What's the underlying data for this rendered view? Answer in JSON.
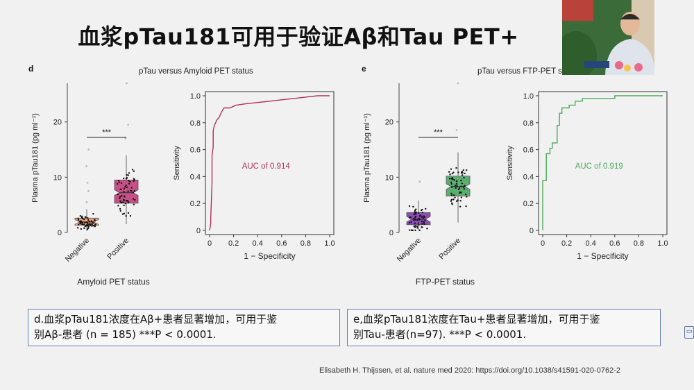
{
  "slide": {
    "title": "血浆pTau181可用于验证Aβ和Tau PET+",
    "citation": "Elisabeth H. Thijssen, et al. nature med 2020: https://doi.org/10.1038/s41591-020-0762-2"
  },
  "panels": {
    "d": {
      "letter": "d",
      "title": "pTau versus Amyloid PET status",
      "box_ylabel": "Plasma pTau181 (pg ml⁻¹)",
      "box_xlabel": "Amyloid PET status",
      "roc_xlabel": "1 − Specificity",
      "roc_ylabel": "Sensitivity",
      "significance": "***",
      "auc_label": "AUC of 0.914",
      "caption_line1": "d.血浆pTau181浓度在Aβ+患者显著增加，可用于鉴",
      "caption_line2": "别Aβ-患者 (n = 185)   ***P < 0.0001."
    },
    "e": {
      "letter": "e",
      "title": "pTau versus FTP-PET status",
      "box_ylabel": "Plasma pTau181 (pg ml⁻¹)",
      "box_xlabel": "FTP-PET status",
      "roc_xlabel": "1 − Specificity",
      "roc_ylabel": "Sensitivity",
      "significance": "***",
      "auc_label": "AUC of 0.919",
      "caption_line1": "e,血浆pTau181浓度在Tau+患者显著增加，可用于鉴",
      "caption_line2": "别Tau-患者(n=97). ***P < 0.0001."
    }
  },
  "colors": {
    "d_negative": "#f0a27a",
    "d_positive": "#c64f86",
    "d_roc": "#b0305f",
    "e_negative": "#8c4bb6",
    "e_positive": "#5cad72",
    "e_roc": "#4caa5b"
  },
  "chart_data": [
    {
      "type": "box",
      "panel": "d",
      "categories": [
        "Negative",
        "Positive"
      ],
      "ylim": [
        0,
        27
      ],
      "yticks": [
        0,
        10,
        20
      ],
      "series": [
        {
          "name": "Negative",
          "q1": 1.3,
          "median": 1.9,
          "q3": 2.6,
          "whisker_low": 0.3,
          "whisker_high": 4.2
        },
        {
          "name": "Positive",
          "q1": 5.3,
          "median": 7.2,
          "q3": 9.5,
          "whisker_low": 1.5,
          "whisker_high": 14.0
        }
      ],
      "outliers": {
        "Negative": [
          5.5,
          7.5,
          9.0,
          12.0,
          15.0
        ],
        "Positive": [
          17.0,
          19.5,
          27.0
        ]
      }
    },
    {
      "type": "line",
      "panel": "d",
      "xlabel": "1 − Specificity",
      "ylabel": "Sensitivity",
      "xlim": [
        0,
        1
      ],
      "ylim": [
        0,
        1
      ],
      "ticks": [
        0,
        0.2,
        0.4,
        0.6,
        0.8,
        1.0
      ],
      "annotation": "AUC of 0.914",
      "x": [
        0,
        0.01,
        0.01,
        0.02,
        0.02,
        0.03,
        0.03,
        0.04,
        0.05,
        0.06,
        0.08,
        0.1,
        0.12,
        0.17,
        0.22,
        0.3,
        0.4,
        0.5,
        0.6,
        0.7,
        0.8,
        0.9,
        1.0
      ],
      "y": [
        0,
        0.05,
        0.1,
        0.35,
        0.55,
        0.62,
        0.74,
        0.78,
        0.8,
        0.82,
        0.84,
        0.88,
        0.91,
        0.91,
        0.93,
        0.94,
        0.95,
        0.96,
        0.97,
        0.98,
        0.99,
        1.0,
        1.0
      ]
    },
    {
      "type": "box",
      "panel": "e",
      "categories": [
        "Negative",
        "Positive"
      ],
      "ylim": [
        0,
        27
      ],
      "yticks": [
        0,
        10,
        20
      ],
      "series": [
        {
          "name": "Negative",
          "q1": 1.4,
          "median": 2.4,
          "q3": 3.6,
          "whisker_low": 0.4,
          "whisker_high": 5.8
        },
        {
          "name": "Positive",
          "q1": 6.6,
          "median": 8.3,
          "q3": 10.2,
          "whisker_low": 1.8,
          "whisker_high": 14.5
        }
      ],
      "outliers": {
        "Negative": [
          9.2
        ],
        "Positive": [
          18.5,
          27.0
        ]
      }
    },
    {
      "type": "line",
      "panel": "e",
      "xlabel": "1 − Specificity",
      "ylabel": "Sensitivity",
      "xlim": [
        0,
        1
      ],
      "ylim": [
        0,
        1
      ],
      "ticks": [
        0,
        0.2,
        0.4,
        0.6,
        0.8,
        1.0
      ],
      "annotation": "AUC of 0.919",
      "x": [
        0,
        0,
        0.03,
        0.03,
        0.06,
        0.06,
        0.08,
        0.08,
        0.12,
        0.12,
        0.14,
        0.14,
        0.16,
        0.16,
        0.22,
        0.22,
        0.27,
        0.27,
        0.33,
        0.33,
        0.6,
        0.6,
        1.0
      ],
      "y": [
        0,
        0.37,
        0.37,
        0.57,
        0.57,
        0.61,
        0.61,
        0.65,
        0.65,
        0.78,
        0.78,
        0.87,
        0.87,
        0.91,
        0.91,
        0.93,
        0.93,
        0.96,
        0.96,
        0.98,
        0.98,
        1.0,
        1.0
      ]
    }
  ]
}
